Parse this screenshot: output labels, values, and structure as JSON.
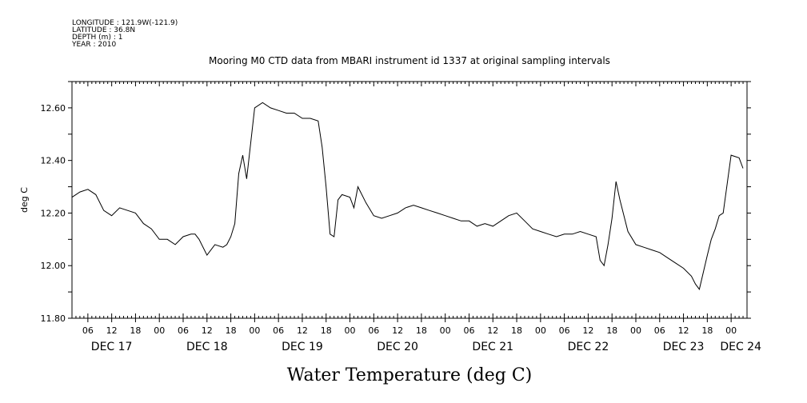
{
  "header": {
    "longitude": "LONGITUDE : 121.9W(-121.9)",
    "latitude": "LATITUDE : 36.8N",
    "depth": "DEPTH (m) : 1",
    "year": "YEAR : 2010"
  },
  "chart_data": {
    "type": "line",
    "title": "Mooring M0 CTD data from MBARI instrument id 1337 at original sampling intervals",
    "xlabel": "Water Temperature (deg C)",
    "ylabel": "deg C",
    "xlim": [
      "2010-12-17 02:00",
      "2010-12-24 04:00"
    ],
    "ylim": [
      11.8,
      12.7
    ],
    "y_ticks": [
      "11.80",
      "12.00",
      "12.20",
      "12.40",
      "12.60"
    ],
    "hour_ticks": [
      "06",
      "12",
      "18",
      "00",
      "06",
      "12",
      "18",
      "00",
      "06",
      "12",
      "18",
      "00",
      "06",
      "12",
      "18",
      "00",
      "06",
      "12",
      "18",
      "00",
      "06",
      "12",
      "18",
      "00",
      "06",
      "12",
      "18",
      "00"
    ],
    "day_labels": [
      "DEC 17",
      "DEC 18",
      "DEC 19",
      "DEC 20",
      "DEC 21",
      "DEC 22",
      "DEC 23",
      "DEC 24"
    ],
    "grid": false,
    "legend": "none",
    "series": [
      {
        "x": [
          "2010-12-17 02:00",
          "2010-12-17 04:00",
          "2010-12-17 06:00",
          "2010-12-17 08:00",
          "2010-12-17 10:00",
          "2010-12-17 12:00",
          "2010-12-17 14:00",
          "2010-12-17 16:00",
          "2010-12-17 18:00",
          "2010-12-17 20:00",
          "2010-12-17 22:00",
          "2010-12-18 00:00",
          "2010-12-18 02:00",
          "2010-12-18 04:00",
          "2010-12-18 06:00",
          "2010-12-18 08:00",
          "2010-12-18 09:00",
          "2010-12-18 10:00",
          "2010-12-18 12:00",
          "2010-12-18 14:00",
          "2010-12-18 16:00",
          "2010-12-18 17:00",
          "2010-12-18 18:00",
          "2010-12-18 19:00",
          "2010-12-18 20:00",
          "2010-12-18 21:00",
          "2010-12-18 22:00",
          "2010-12-19 00:00",
          "2010-12-19 02:00",
          "2010-12-19 04:00",
          "2010-12-19 06:00",
          "2010-12-19 08:00",
          "2010-12-19 10:00",
          "2010-12-19 12:00",
          "2010-12-19 14:00",
          "2010-12-19 16:00",
          "2010-12-19 17:00",
          "2010-12-19 18:00",
          "2010-12-19 19:00",
          "2010-12-19 20:00",
          "2010-12-19 21:00",
          "2010-12-19 22:00",
          "2010-12-20 00:00",
          "2010-12-20 01:00",
          "2010-12-20 02:00",
          "2010-12-20 04:00",
          "2010-12-20 06:00",
          "2010-12-20 08:00",
          "2010-12-20 10:00",
          "2010-12-20 12:00",
          "2010-12-20 14:00",
          "2010-12-20 16:00",
          "2010-12-20 18:00",
          "2010-12-20 20:00",
          "2010-12-20 22:00",
          "2010-12-21 00:00",
          "2010-12-21 02:00",
          "2010-12-21 04:00",
          "2010-12-21 06:00",
          "2010-12-21 08:00",
          "2010-12-21 10:00",
          "2010-12-21 12:00",
          "2010-12-21 14:00",
          "2010-12-21 16:00",
          "2010-12-21 18:00",
          "2010-12-21 20:00",
          "2010-12-21 22:00",
          "2010-12-22 00:00",
          "2010-12-22 02:00",
          "2010-12-22 04:00",
          "2010-12-22 06:00",
          "2010-12-22 08:00",
          "2010-12-22 10:00",
          "2010-12-22 12:00",
          "2010-12-22 14:00",
          "2010-12-22 15:00",
          "2010-12-22 16:00",
          "2010-12-22 17:00",
          "2010-12-22 18:00",
          "2010-12-22 19:00",
          "2010-12-22 20:00",
          "2010-12-22 22:00",
          "2010-12-23 00:00",
          "2010-12-23 02:00",
          "2010-12-23 04:00",
          "2010-12-23 06:00",
          "2010-12-23 08:00",
          "2010-12-23 10:00",
          "2010-12-23 12:00",
          "2010-12-23 14:00",
          "2010-12-23 15:00",
          "2010-12-23 16:00",
          "2010-12-23 18:00",
          "2010-12-23 19:00",
          "2010-12-23 20:00",
          "2010-12-23 21:00",
          "2010-12-23 22:00",
          "2010-12-24 00:00",
          "2010-12-24 02:00",
          "2010-12-24 03:00"
        ],
        "y": [
          12.26,
          12.28,
          12.29,
          12.27,
          12.21,
          12.19,
          12.22,
          12.21,
          12.2,
          12.16,
          12.14,
          12.1,
          12.1,
          12.08,
          12.11,
          12.12,
          12.12,
          12.1,
          12.04,
          12.08,
          12.07,
          12.08,
          12.11,
          12.16,
          12.35,
          12.42,
          12.33,
          12.6,
          12.62,
          12.6,
          12.59,
          12.58,
          12.58,
          12.56,
          12.56,
          12.55,
          12.45,
          12.3,
          12.12,
          12.11,
          12.25,
          12.27,
          12.26,
          12.22,
          12.3,
          12.24,
          12.19,
          12.18,
          12.19,
          12.2,
          12.22,
          12.23,
          12.22,
          12.21,
          12.2,
          12.19,
          12.18,
          12.17,
          12.17,
          12.15,
          12.16,
          12.15,
          12.17,
          12.19,
          12.2,
          12.17,
          12.14,
          12.13,
          12.12,
          12.11,
          12.12,
          12.12,
          12.13,
          12.12,
          12.11,
          12.02,
          12.0,
          12.08,
          12.18,
          12.32,
          12.25,
          12.13,
          12.08,
          12.07,
          12.06,
          12.05,
          12.03,
          12.01,
          11.99,
          11.96,
          11.93,
          11.91,
          12.04,
          12.1,
          12.14,
          12.19,
          12.2,
          12.42,
          12.41,
          12.37
        ]
      }
    ]
  }
}
